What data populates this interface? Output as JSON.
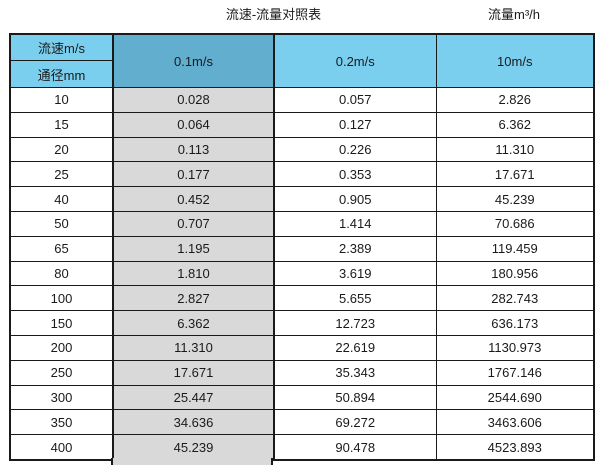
{
  "page": {
    "title_left": "流速-流量对照表",
    "title_right": "流量m³/h"
  },
  "colors": {
    "header_fill": "#7BCFEE",
    "selected_header_fill": "#62AECE",
    "selected_column_fill": "#D9D9D9",
    "grid_border": "#1A1A1A",
    "text": "#1A1A1A"
  },
  "table": {
    "corner": {
      "top": "流速m/s",
      "bottom": "通径mm"
    },
    "velocity_headers": [
      "0.1m/s",
      "0.2m/s",
      "10m/s"
    ],
    "selected_column_index": 1,
    "rows": [
      [
        "10",
        "0.028",
        "0.057",
        "2.826"
      ],
      [
        "15",
        "0.064",
        "0.127",
        "6.362"
      ],
      [
        "20",
        "0.113",
        "0.226",
        "11.310"
      ],
      [
        "25",
        "0.177",
        "0.353",
        "17.671"
      ],
      [
        "40",
        "0.452",
        "0.905",
        "45.239"
      ],
      [
        "50",
        "0.707",
        "1.414",
        "70.686"
      ],
      [
        "65",
        "1.195",
        "2.389",
        "119.459"
      ],
      [
        "80",
        "1.810",
        "3.619",
        "180.956"
      ],
      [
        "100",
        "2.827",
        "5.655",
        "282.743"
      ],
      [
        "150",
        "6.362",
        "12.723",
        "636.173"
      ],
      [
        "200",
        "11.310",
        "22.619",
        "1130.973"
      ],
      [
        "250",
        "17.671",
        "35.343",
        "1767.146"
      ],
      [
        "300",
        "25.447",
        "50.894",
        "2544.690"
      ],
      [
        "350",
        "34.636",
        "69.272",
        "3463.606"
      ],
      [
        "400",
        "45.239",
        "90.478",
        "4523.893"
      ]
    ]
  },
  "chart_data": {
    "type": "table",
    "title": "流速-流量对照表",
    "unit_label": "流量m³/h",
    "columns": [
      "通径mm",
      "0.1m/s",
      "0.2m/s",
      "10m/s"
    ],
    "rows": [
      [
        10,
        0.028,
        0.057,
        2.826
      ],
      [
        15,
        0.064,
        0.127,
        6.362
      ],
      [
        20,
        0.113,
        0.226,
        11.31
      ],
      [
        25,
        0.177,
        0.353,
        17.671
      ],
      [
        40,
        0.452,
        0.905,
        45.239
      ],
      [
        50,
        0.707,
        1.414,
        70.686
      ],
      [
        65,
        1.195,
        2.389,
        119.459
      ],
      [
        80,
        1.81,
        3.619,
        180.956
      ],
      [
        100,
        2.827,
        5.655,
        282.743
      ],
      [
        150,
        6.362,
        12.723,
        636.173
      ],
      [
        200,
        11.31,
        22.619,
        1130.973
      ],
      [
        250,
        17.671,
        35.343,
        1767.146
      ],
      [
        300,
        25.447,
        50.894,
        2544.69
      ],
      [
        350,
        34.636,
        69.272,
        3463.606
      ],
      [
        400,
        45.239,
        90.478,
        4523.893
      ]
    ]
  }
}
